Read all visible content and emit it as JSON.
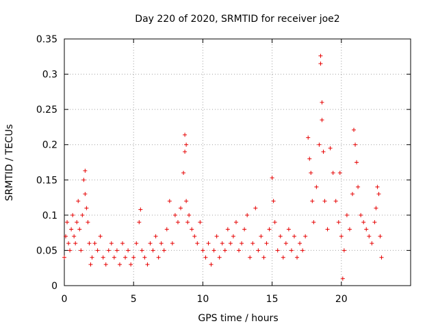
{
  "chart_data": {
    "type": "scatter",
    "title": "Day 220 of 2020, SRMTID for receiver joe2",
    "xlabel": "GPS time / hours",
    "ylabel": "SRMTID / TECUs",
    "xlim": [
      0,
      25
    ],
    "ylim": [
      0,
      0.35
    ],
    "xticks": [
      0,
      5,
      10,
      15,
      20
    ],
    "xtick_labels": [
      "0",
      "5",
      "10",
      "15",
      "20"
    ],
    "yticks": [
      0,
      0.05,
      0.1,
      0.15,
      0.2,
      0.25,
      0.3,
      0.35
    ],
    "ytick_labels": [
      "0",
      "0.05",
      "0.1",
      "0.15",
      "0.2",
      "0.25",
      "0.3",
      "0.35"
    ],
    "grid": true,
    "marker": "+",
    "color": "#e60000",
    "series": [
      {
        "name": "SRMTID",
        "x": [
          0.0,
          0.1,
          0.2,
          0.3,
          0.4,
          0.5,
          0.6,
          0.7,
          0.8,
          0.9,
          1.0,
          1.1,
          1.2,
          1.3,
          1.4,
          1.5,
          1.5,
          1.6,
          1.7,
          1.8,
          1.9,
          2.0,
          2.2,
          2.4,
          2.6,
          2.8,
          3.0,
          3.2,
          3.4,
          3.6,
          3.8,
          4.0,
          4.2,
          4.4,
          4.6,
          4.8,
          5.0,
          5.2,
          5.4,
          5.5,
          5.6,
          5.8,
          6.0,
          6.2,
          6.4,
          6.6,
          6.8,
          7.0,
          7.2,
          7.4,
          7.6,
          7.8,
          8.0,
          8.2,
          8.4,
          8.6,
          8.7,
          8.7,
          8.8,
          8.8,
          8.9,
          9.0,
          9.2,
          9.4,
          9.6,
          9.8,
          10.0,
          10.2,
          10.4,
          10.6,
          10.8,
          11.0,
          11.2,
          11.4,
          11.6,
          11.8,
          12.0,
          12.2,
          12.4,
          12.6,
          12.8,
          13.0,
          13.2,
          13.4,
          13.6,
          13.8,
          14.0,
          14.2,
          14.4,
          14.6,
          14.8,
          15.0,
          15.1,
          15.2,
          15.4,
          15.6,
          15.8,
          16.0,
          16.2,
          16.4,
          16.6,
          16.8,
          17.0,
          17.2,
          17.4,
          17.6,
          17.7,
          17.8,
          17.9,
          18.0,
          18.2,
          18.4,
          18.5,
          18.5,
          18.6,
          18.6,
          18.7,
          18.8,
          19.0,
          19.2,
          19.4,
          19.6,
          19.8,
          19.9,
          20.0,
          20.1,
          20.2,
          20.4,
          20.6,
          20.8,
          20.9,
          21.0,
          21.1,
          21.2,
          21.4,
          21.6,
          21.8,
          22.0,
          22.2,
          22.4,
          22.5,
          22.6,
          22.7,
          22.8,
          22.9
        ],
        "values": [
          0.04,
          0.07,
          0.09,
          0.06,
          0.05,
          0.08,
          0.1,
          0.07,
          0.06,
          0.09,
          0.12,
          0.08,
          0.05,
          0.1,
          0.15,
          0.163,
          0.13,
          0.11,
          0.09,
          0.06,
          0.03,
          0.04,
          0.06,
          0.05,
          0.07,
          0.04,
          0.03,
          0.05,
          0.06,
          0.04,
          0.05,
          0.03,
          0.06,
          0.04,
          0.05,
          0.03,
          0.04,
          0.06,
          0.09,
          0.108,
          0.05,
          0.04,
          0.03,
          0.06,
          0.05,
          0.07,
          0.04,
          0.06,
          0.05,
          0.08,
          0.12,
          0.06,
          0.1,
          0.09,
          0.11,
          0.16,
          0.19,
          0.214,
          0.2,
          0.12,
          0.09,
          0.1,
          0.08,
          0.07,
          0.06,
          0.09,
          0.05,
          0.04,
          0.06,
          0.03,
          0.05,
          0.07,
          0.04,
          0.06,
          0.05,
          0.08,
          0.06,
          0.07,
          0.09,
          0.05,
          0.06,
          0.08,
          0.1,
          0.04,
          0.06,
          0.11,
          0.05,
          0.07,
          0.04,
          0.06,
          0.08,
          0.153,
          0.12,
          0.09,
          0.05,
          0.07,
          0.04,
          0.06,
          0.08,
          0.05,
          0.07,
          0.04,
          0.06,
          0.05,
          0.07,
          0.21,
          0.18,
          0.16,
          0.12,
          0.09,
          0.14,
          0.2,
          0.326,
          0.315,
          0.26,
          0.235,
          0.19,
          0.12,
          0.08,
          0.195,
          0.16,
          0.12,
          0.09,
          0.16,
          0.07,
          0.01,
          0.05,
          0.1,
          0.08,
          0.13,
          0.221,
          0.2,
          0.175,
          0.14,
          0.1,
          0.09,
          0.08,
          0.07,
          0.06,
          0.09,
          0.11,
          0.14,
          0.13,
          0.07,
          0.04
        ]
      }
    ]
  }
}
